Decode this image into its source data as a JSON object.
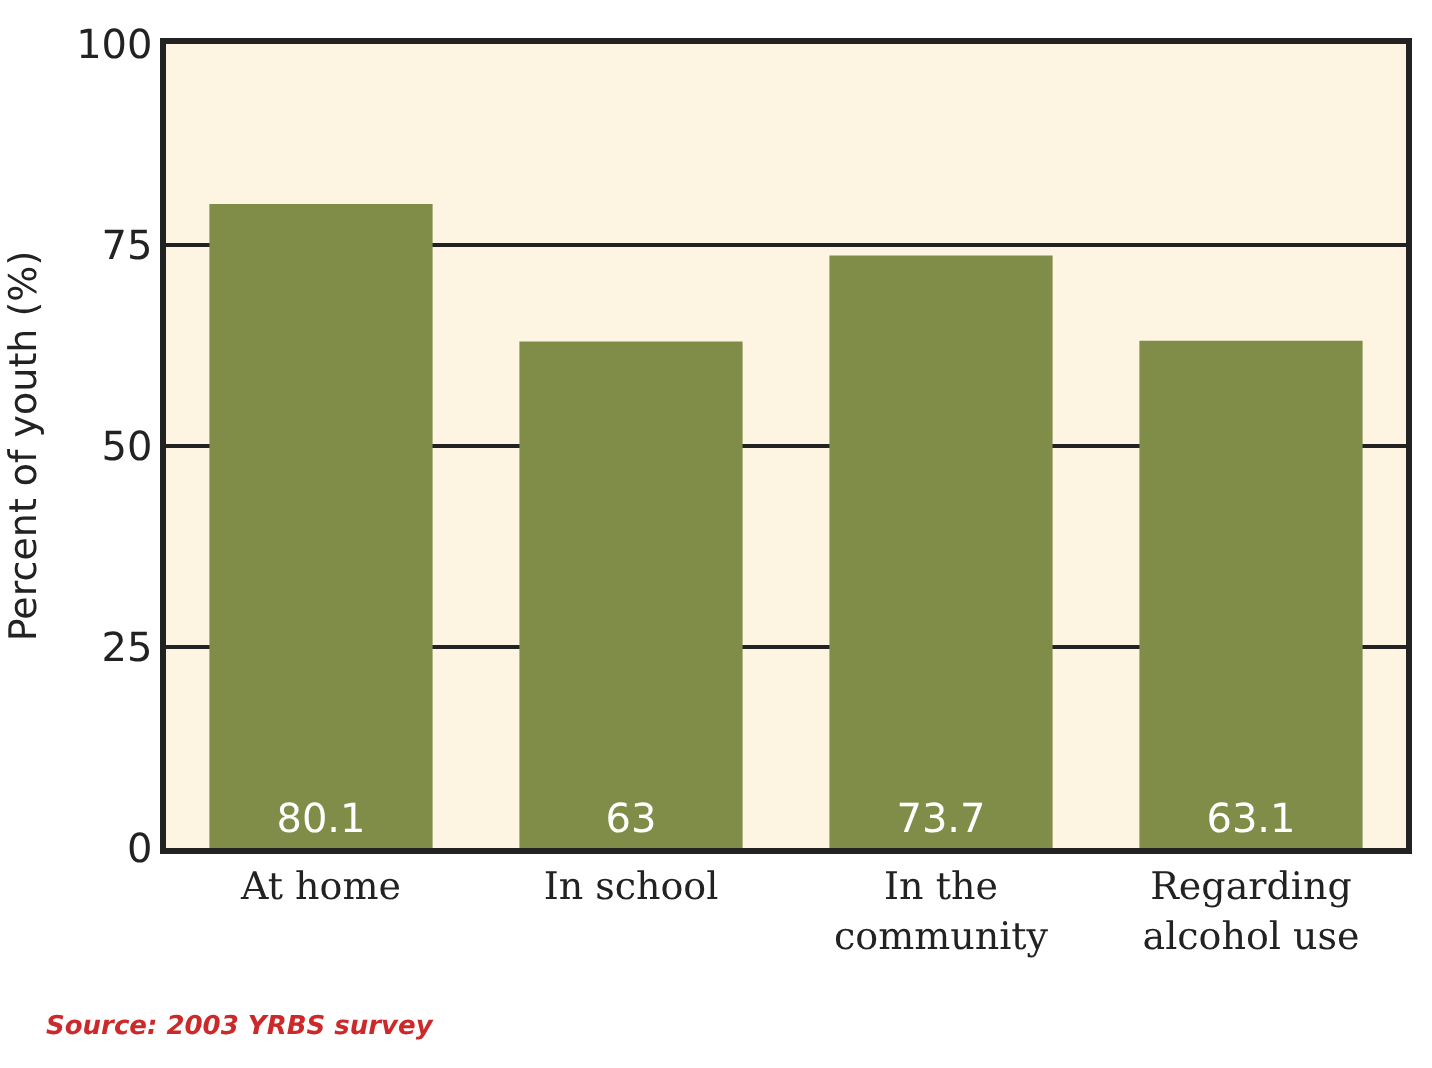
{
  "chart_data": {
    "type": "bar",
    "ylabel": "Percent of youth (%)",
    "categories": [
      "At home",
      "In school",
      "In the\ncommunity",
      "Regarding\nalcohol use"
    ],
    "values": [
      80.1,
      63,
      73.7,
      63.1
    ],
    "color": "#7f8d48",
    "ylim": [
      0,
      100
    ],
    "yticks": [
      0,
      25,
      50,
      75,
      100
    ],
    "grid": "y",
    "data_labels": true,
    "annotations": [
      "Source: 2003 YRBS survey"
    ]
  }
}
